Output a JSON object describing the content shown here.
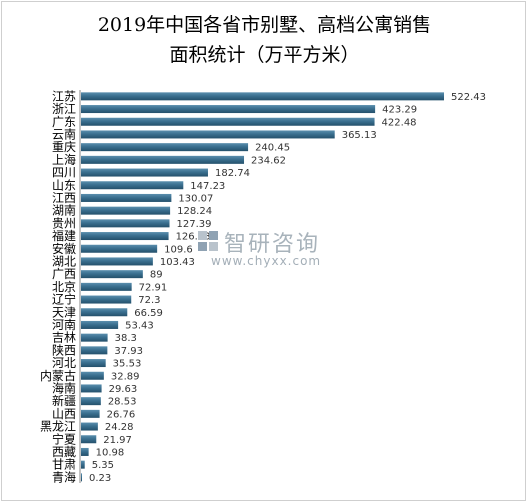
{
  "chart_data": {
    "type": "bar",
    "orientation": "horizontal",
    "title": "2019年中国各省市别墅、高档公寓销售\n面积统计（万平方米）",
    "xlabel": "",
    "ylabel": "",
    "xlim": [
      0,
      522.43
    ],
    "grid": false,
    "legend": "none",
    "bar_color": "#3a6f8f",
    "categories": [
      "江苏",
      "浙江",
      "广东",
      "云南",
      "重庆",
      "上海",
      "四川",
      "山东",
      "江西",
      "湖南",
      "贵州",
      "福建",
      "安徽",
      "湖北",
      "广西",
      "北京",
      "辽宁",
      "天津",
      "河南",
      "吉林",
      "陕西",
      "河北",
      "内蒙古",
      "海南",
      "新疆",
      "山西",
      "黑龙江",
      "宁夏",
      "西藏",
      "甘肃",
      "青海"
    ],
    "values": [
      522.43,
      423.29,
      422.48,
      365.13,
      240.45,
      234.62,
      182.74,
      147.23,
      130.07,
      128.24,
      127.39,
      126.03,
      109.6,
      103.43,
      89,
      72.91,
      72.3,
      66.59,
      53.43,
      38.3,
      37.93,
      35.53,
      32.89,
      29.63,
      28.53,
      26.76,
      24.28,
      21.97,
      10.98,
      5.35,
      0.23
    ],
    "value_labels": [
      "522.43",
      "423.29",
      "422.48",
      "365.13",
      "240.45",
      "234.62",
      "182.74",
      "147.23",
      "130.07",
      "128.24",
      "127.39",
      "126.03",
      "109.6",
      "103.43",
      "89",
      "72.91",
      "72.3",
      "66.59",
      "53.43",
      "38.3",
      "37.93",
      "35.53",
      "32.89",
      "29.63",
      "28.53",
      "26.76",
      "24.28",
      "21.97",
      "10.98",
      "5.35",
      "0.23"
    ]
  },
  "watermark": {
    "cn": "智研咨询",
    "url": "www.chyxx.com",
    "logo_icon": "zhiyan-logo-icon"
  }
}
